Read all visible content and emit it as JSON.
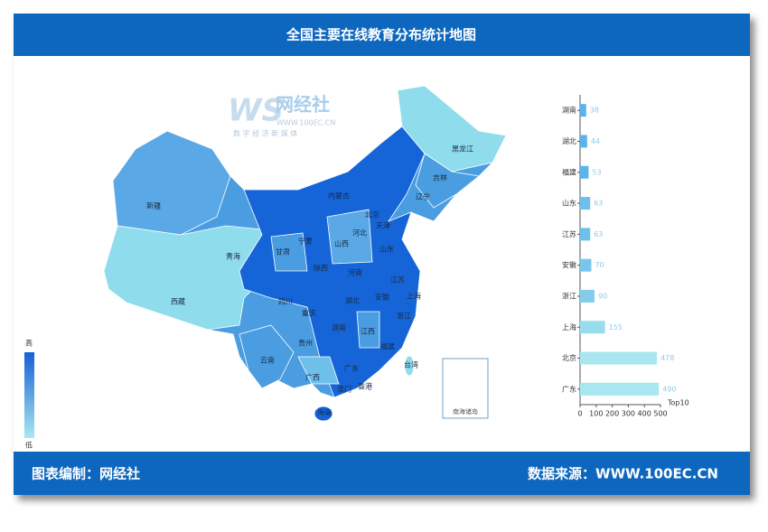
{
  "chart_data": {
    "type": "bar",
    "orientation": "horizontal",
    "title": "全国主要在线教育分布统计地图",
    "categories": [
      "湖南",
      "湖北",
      "福建",
      "山东",
      "江苏",
      "安徽",
      "浙江",
      "上海",
      "北京",
      "广东"
    ],
    "values": [
      38,
      44,
      53,
      63,
      63,
      70,
      90,
      155,
      478,
      490
    ],
    "colors": [
      "#5ab4ea",
      "#5ab4ea",
      "#5ab4ea",
      "#6ec0ea",
      "#6ec0ea",
      "#78c6ec",
      "#84ccec",
      "#9adcef",
      "#a8e6f0",
      "#a8e6f0"
    ],
    "value_label_color": "#8fcbe8",
    "xlim": [
      0,
      500
    ],
    "xticks": [
      0,
      100,
      200,
      300,
      400,
      500
    ],
    "x_label": "Top10"
  },
  "map": {
    "labels": [
      "黑龙江",
      "吉林",
      "辽宁",
      "内蒙古",
      "北京",
      "天津",
      "河北",
      "山西",
      "山东",
      "宁夏",
      "甘肃",
      "陕西",
      "河南",
      "江苏",
      "安徽",
      "上海",
      "湖北",
      "四川",
      "重庆",
      "浙江",
      "湖南",
      "江西",
      "贵州",
      "福建",
      "云南",
      "广西",
      "广东",
      "台湾",
      "香港",
      "澳门",
      "海南",
      "新疆",
      "青海",
      "西藏"
    ],
    "legend_high": "高",
    "legend_low": "低",
    "inset_label": "南海诸岛"
  },
  "logo": {
    "mark": "WS",
    "name": "网经社",
    "url": "WWW.100EC.CN",
    "slogan": "数 字 经 济 新 媒 体"
  },
  "footer": {
    "left": "图表编制：网经社",
    "right": "数据来源：WWW.100EC.CN"
  }
}
